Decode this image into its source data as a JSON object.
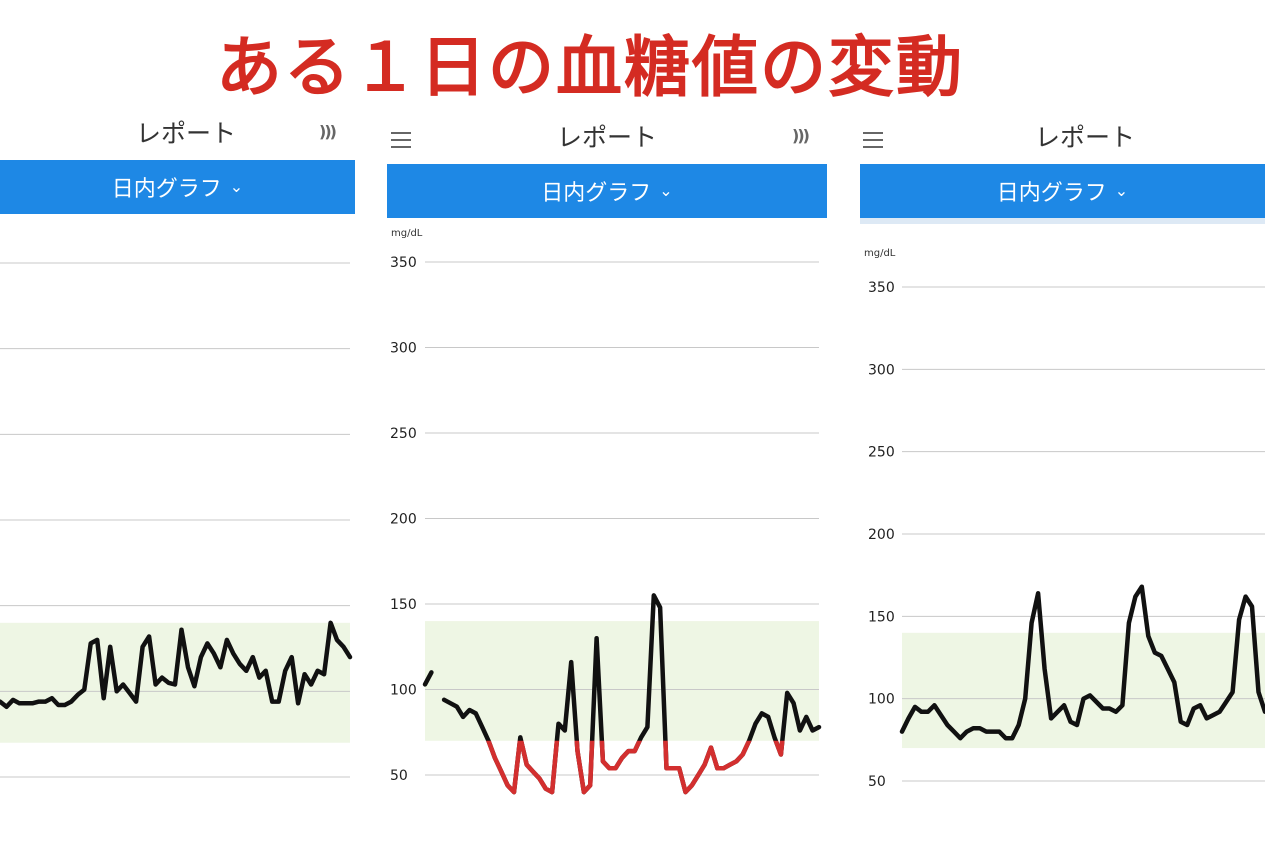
{
  "page": {
    "headline": "ある１日の血糖値の変動"
  },
  "panels": [
    {
      "header_title": "レポート",
      "nfc_icon": "nfc-icon",
      "dropdown_label": "日内グラフ",
      "dropdown_icon": "chevron-down-icon"
    },
    {
      "header_title": "レポート",
      "menu_icon": "hamburger-icon",
      "nfc_icon": "nfc-icon",
      "dropdown_label": "日内グラフ",
      "dropdown_icon": "chevron-down-icon"
    },
    {
      "header_title": "レポート",
      "menu_icon": "hamburger-icon",
      "dropdown_label": "日内グラフ",
      "dropdown_icon": "chevron-down-icon"
    }
  ],
  "colors": {
    "headline": "#d42b22",
    "bar": "#1e88e5",
    "target_band": "#eef6e4",
    "line": "#111111",
    "low": "#d32f2f",
    "grid": "#c8c8c8"
  },
  "chart_data": [
    {
      "type": "line",
      "ylim": [
        30,
        370
      ],
      "yticks": [
        50,
        100,
        150,
        200,
        250,
        300,
        350
      ],
      "tick_labels_visible": false,
      "target_range": [
        70,
        140
      ],
      "series": [
        {
          "values": [
            94,
            91,
            95,
            93,
            93,
            93,
            94,
            94,
            96,
            92,
            92,
            94,
            98,
            101,
            128,
            130,
            96,
            126,
            100,
            104,
            99,
            94,
            126,
            132,
            104,
            108,
            105,
            104,
            136,
            114,
            103,
            120,
            128,
            122,
            114,
            130,
            122,
            116,
            112,
            120,
            108,
            112,
            94,
            94,
            112,
            120,
            93,
            110,
            104,
            112,
            110,
            140,
            130,
            126,
            120
          ]
        }
      ]
    },
    {
      "type": "line",
      "ylabel": "mg/dL",
      "ylim": [
        30,
        370
      ],
      "yticks": [
        50,
        100,
        150,
        200,
        250,
        300,
        350
      ],
      "target_range": [
        70,
        140
      ],
      "low_threshold": 70,
      "series": [
        {
          "values": [
            103,
            110,
            null,
            94,
            92,
            90,
            84,
            88,
            86,
            78,
            70,
            60,
            52,
            44,
            40,
            72,
            56,
            52,
            48,
            42,
            40,
            80,
            76,
            116,
            64,
            40,
            44,
            130,
            58,
            54,
            54,
            60,
            64,
            64,
            72,
            78,
            155,
            148,
            54,
            54,
            54,
            40,
            44,
            50,
            56,
            66,
            54,
            54,
            56,
            58,
            62,
            70,
            80,
            86,
            84,
            72,
            62,
            98,
            92,
            76,
            84,
            76,
            78
          ]
        }
      ]
    },
    {
      "type": "line",
      "ylabel": "mg/dL",
      "ylim": [
        30,
        370
      ],
      "yticks": [
        50,
        100,
        150,
        200,
        250,
        300,
        350
      ],
      "target_range": [
        70,
        140
      ],
      "series": [
        {
          "values": [
            80,
            88,
            95,
            92,
            92,
            96,
            90,
            84,
            80,
            76,
            80,
            82,
            82,
            80,
            80,
            80,
            76,
            76,
            84,
            100,
            146,
            164,
            118,
            88,
            92,
            96,
            86,
            84,
            100,
            102,
            98,
            94,
            94,
            92,
            96,
            146,
            162,
            168,
            138,
            128,
            126,
            118,
            110,
            86,
            84,
            94,
            96,
            88,
            90,
            92,
            98,
            104,
            148,
            162,
            156,
            104,
            92
          ]
        }
      ]
    }
  ]
}
